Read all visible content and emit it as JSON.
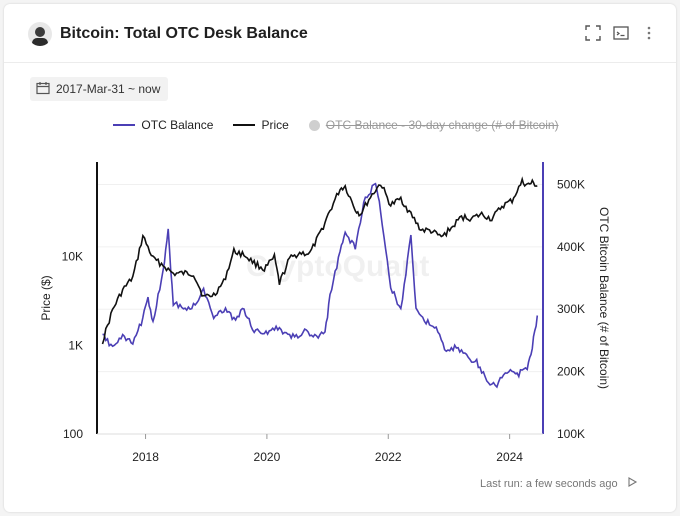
{
  "header": {
    "title": "Bitcoin: Total OTC Desk Balance"
  },
  "date_range": "2017-Mar-31 ~ now",
  "legend": {
    "items": [
      {
        "label": "OTC Balance",
        "color": "#4b3fb5",
        "enabled": true
      },
      {
        "label": "Price",
        "color": "#111111",
        "enabled": true
      },
      {
        "label": "OTC Balance - 30-day change (# of Bitcoin)",
        "color": "#cfcfcf",
        "enabled": false
      }
    ]
  },
  "watermark": "CryptoQuant",
  "footer": {
    "last_run": "Last run: a few seconds ago"
  },
  "chart_data": {
    "type": "line",
    "x_ticks": [
      "2018",
      "2020",
      "2022",
      "2024"
    ],
    "y_left": {
      "label": "Price ($)",
      "scale": "log",
      "ticks": [
        "100",
        "1K",
        "10K"
      ],
      "range": [
        100,
        90000
      ]
    },
    "y_right": {
      "label": "OTC Bitcoin Balance (# of Bitcoin)",
      "ticks": [
        "100K",
        "200K",
        "300K",
        "400K",
        "500K"
      ],
      "range": [
        100000,
        520000
      ]
    },
    "series": [
      {
        "name": "Price",
        "color": "#111111",
        "axis": "left",
        "points": [
          [
            "2017-04",
            1100
          ],
          [
            "2017-06",
            2500
          ],
          [
            "2017-08",
            4200
          ],
          [
            "2017-10",
            5800
          ],
          [
            "2017-12",
            17000
          ],
          [
            "2018-02",
            9500
          ],
          [
            "2018-04",
            8000
          ],
          [
            "2018-06",
            6400
          ],
          [
            "2018-08",
            6500
          ],
          [
            "2018-10",
            6400
          ],
          [
            "2018-12",
            3500
          ],
          [
            "2019-02",
            3700
          ],
          [
            "2019-04",
            5200
          ],
          [
            "2019-06",
            11500
          ],
          [
            "2019-08",
            10500
          ],
          [
            "2019-10",
            8500
          ],
          [
            "2019-12",
            7200
          ],
          [
            "2020-02",
            9800
          ],
          [
            "2020-03",
            5000
          ],
          [
            "2020-05",
            9500
          ],
          [
            "2020-07",
            11000
          ],
          [
            "2020-09",
            10800
          ],
          [
            "2020-11",
            18000
          ],
          [
            "2021-01",
            33000
          ],
          [
            "2021-03",
            58000
          ],
          [
            "2021-04",
            62000
          ],
          [
            "2021-06",
            34000
          ],
          [
            "2021-07",
            30000
          ],
          [
            "2021-09",
            47000
          ],
          [
            "2021-11",
            67000
          ],
          [
            "2022-01",
            38000
          ],
          [
            "2022-03",
            45000
          ],
          [
            "2022-05",
            30000
          ],
          [
            "2022-07",
            20000
          ],
          [
            "2022-09",
            19500
          ],
          [
            "2022-11",
            16500
          ],
          [
            "2023-01",
            21000
          ],
          [
            "2023-03",
            28000
          ],
          [
            "2023-05",
            27000
          ],
          [
            "2023-07",
            30000
          ],
          [
            "2023-09",
            26500
          ],
          [
            "2023-11",
            37000
          ],
          [
            "2024-01",
            43000
          ],
          [
            "2024-03",
            70000
          ],
          [
            "2024-04",
            64000
          ],
          [
            "2024-05",
            68000
          ],
          [
            "2024-06",
            63000
          ]
        ]
      },
      {
        "name": "OTC Balance",
        "color": "#4b3fb5",
        "axis": "right",
        "points": [
          [
            "2017-04",
            258000
          ],
          [
            "2017-06",
            240000
          ],
          [
            "2017-08",
            255000
          ],
          [
            "2017-10",
            245000
          ],
          [
            "2017-12",
            285000
          ],
          [
            "2018-01",
            320000
          ],
          [
            "2018-02",
            280000
          ],
          [
            "2018-04",
            360000
          ],
          [
            "2018-05",
            425000
          ],
          [
            "2018-06",
            310000
          ],
          [
            "2018-08",
            300000
          ],
          [
            "2018-10",
            305000
          ],
          [
            "2018-12",
            330000
          ],
          [
            "2019-02",
            290000
          ],
          [
            "2019-04",
            300000
          ],
          [
            "2019-06",
            285000
          ],
          [
            "2019-08",
            300000
          ],
          [
            "2019-10",
            265000
          ],
          [
            "2019-12",
            260000
          ],
          [
            "2020-02",
            270000
          ],
          [
            "2020-04",
            262000
          ],
          [
            "2020-06",
            255000
          ],
          [
            "2020-08",
            265000
          ],
          [
            "2020-10",
            255000
          ],
          [
            "2020-12",
            262000
          ],
          [
            "2021-01",
            320000
          ],
          [
            "2021-03",
            395000
          ],
          [
            "2021-04",
            420000
          ],
          [
            "2021-06",
            400000
          ],
          [
            "2021-08",
            480000
          ],
          [
            "2021-10",
            500000
          ],
          [
            "2021-11",
            460000
          ],
          [
            "2022-01",
            335000
          ],
          [
            "2022-03",
            300000
          ],
          [
            "2022-05",
            420000
          ],
          [
            "2022-06",
            300000
          ],
          [
            "2022-08",
            280000
          ],
          [
            "2022-10",
            270000
          ],
          [
            "2022-12",
            230000
          ],
          [
            "2023-02",
            240000
          ],
          [
            "2023-04",
            225000
          ],
          [
            "2023-06",
            215000
          ],
          [
            "2023-08",
            185000
          ],
          [
            "2023-10",
            180000
          ],
          [
            "2023-12",
            200000
          ],
          [
            "2024-02",
            195000
          ],
          [
            "2024-04",
            205000
          ],
          [
            "2024-05",
            240000
          ],
          [
            "2024-06",
            290000
          ]
        ]
      }
    ]
  }
}
